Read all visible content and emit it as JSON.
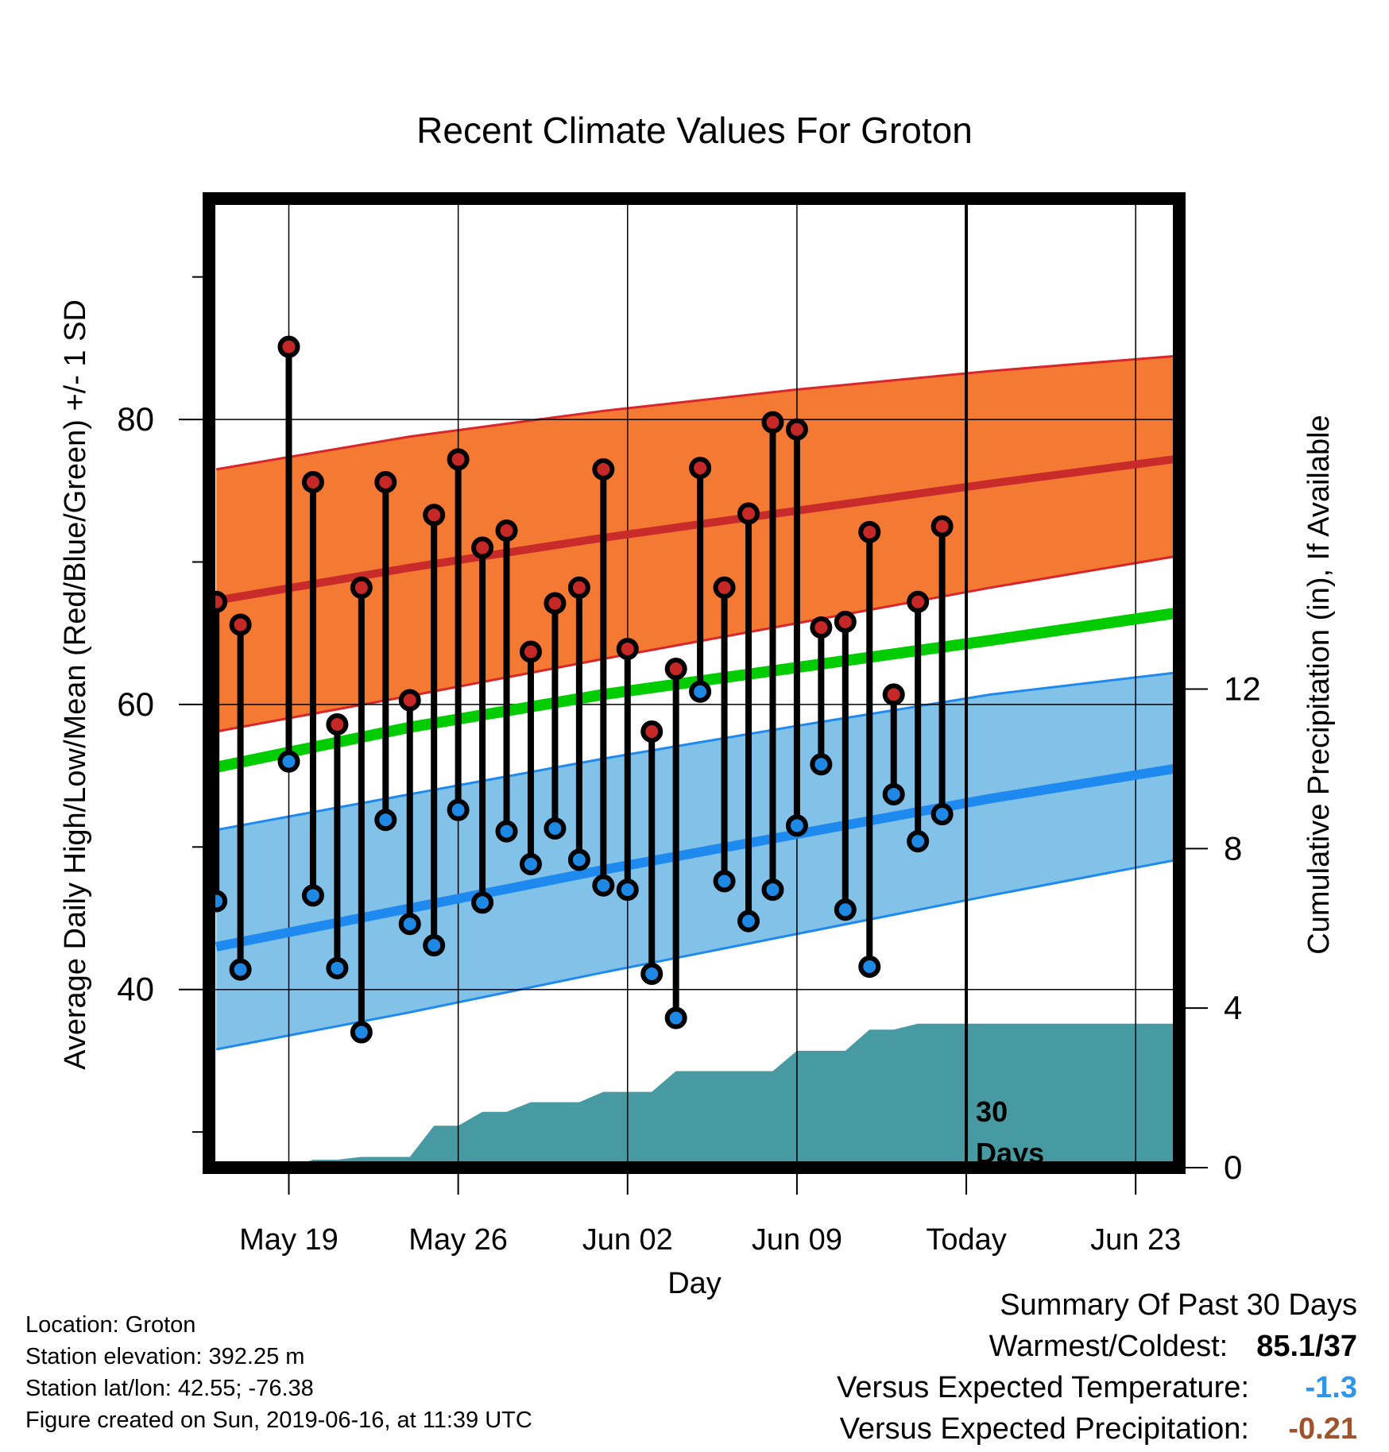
{
  "chart_data": {
    "type": "line",
    "title": "Recent Climate Values For Groton",
    "xlabel": "Day",
    "ylabel": "Average Daily High/Low/Mean (Red/Blue/Green) +/- 1 SD",
    "y2label": "Cumulative Precipitation (in), If Available",
    "x_tick_labels": [
      "May 19",
      "May 26",
      "Jun 02",
      "Jun 09",
      "Today",
      "Jun 23"
    ],
    "x_tick_days": [
      19,
      26,
      33,
      40,
      47,
      54
    ],
    "xlim_days": [
      15.7,
      55.8
    ],
    "ylim": [
      27.5,
      95.5
    ],
    "y_ticks": [
      40,
      60,
      80
    ],
    "y2_ticks": [
      0,
      4,
      8,
      12
    ],
    "y2lim": [
      0,
      24.3
    ],
    "today_day": 47,
    "today_marker_label": [
      "30",
      "Days"
    ],
    "grid": true,
    "daily_obs": {
      "days": [
        16,
        17,
        19,
        20,
        21,
        22,
        23,
        24,
        25,
        26,
        27,
        28,
        29,
        30,
        31,
        32,
        33,
        34,
        35,
        36,
        37,
        38,
        39,
        40,
        41,
        42,
        43,
        44,
        45,
        46
      ],
      "high": [
        67.2,
        65.6,
        85.1,
        75.6,
        58.6,
        68.2,
        75.6,
        60.3,
        73.3,
        77.2,
        71.0,
        72.2,
        63.7,
        67.1,
        68.2,
        76.5,
        63.9,
        58.1,
        62.5,
        76.6,
        68.2,
        73.4,
        79.8,
        79.3,
        65.4,
        65.8,
        72.1,
        60.7,
        67.2,
        72.5
      ],
      "low": [
        46.2,
        41.4,
        56.0,
        46.6,
        41.5,
        37.0,
        51.9,
        44.6,
        43.1,
        52.6,
        46.1,
        51.1,
        48.8,
        51.3,
        49.1,
        47.3,
        47.0,
        41.1,
        38.0,
        60.9,
        47.6,
        44.8,
        47.0,
        51.5,
        55.8,
        45.6,
        41.6,
        53.7,
        50.4,
        52.3
      ]
    },
    "normals": {
      "days": [
        16,
        24,
        32,
        40,
        48,
        56
      ],
      "high_mean": [
        67.3,
        69.6,
        71.7,
        73.6,
        75.5,
        77.3
      ],
      "high_upper": [
        76.5,
        78.8,
        80.6,
        82.1,
        83.4,
        84.5
      ],
      "high_lower": [
        58.1,
        60.6,
        63.2,
        65.7,
        68.2,
        70.5
      ],
      "low_mean": [
        43.0,
        45.7,
        48.4,
        50.9,
        53.4,
        55.6
      ],
      "low_upper": [
        51.2,
        53.7,
        56.2,
        58.5,
        60.7,
        62.3
      ],
      "low_lower": [
        35.8,
        38.4,
        41.2,
        43.9,
        46.6,
        49.2
      ],
      "mean": [
        55.6,
        58.4,
        60.7,
        62.6,
        64.5,
        66.5
      ]
    },
    "precip_cumulative": {
      "days": [
        16,
        19,
        20,
        21,
        22,
        23,
        24,
        25,
        26,
        27,
        28,
        29,
        30,
        31,
        32,
        33,
        34,
        35,
        36,
        37,
        38,
        39,
        40,
        41,
        42,
        43,
        44,
        45,
        46,
        47,
        56
      ],
      "values": [
        0,
        0,
        0.2,
        0.2,
        0.27,
        0.27,
        0.27,
        1.05,
        1.05,
        1.4,
        1.4,
        1.64,
        1.64,
        1.64,
        1.9,
        1.9,
        1.9,
        2.42,
        2.42,
        2.42,
        2.42,
        2.42,
        2.93,
        2.93,
        2.93,
        3.46,
        3.46,
        3.61,
        3.61,
        3.61,
        3.61
      ]
    },
    "colors": {
      "high_band": "#F47A33",
      "high_band_edge": "#D8262A",
      "high_line": "#C92A2A",
      "low_band": "#82C1E8",
      "low_band_edge": "#1E8AF0",
      "low_line": "#1E8AF0",
      "mean_line": "#00CC00",
      "precip": "#479AA1",
      "high_marker": "#C62828",
      "low_marker": "#1E88E5"
    }
  },
  "info": {
    "location": "Location: Groton",
    "elevation": "Station elevation: 392.25 m",
    "latlon": "Station lat/lon: 42.55; -76.38",
    "created": "Figure created on Sun, 2019-06-16, at 11:39 UTC"
  },
  "summary": {
    "heading": "Summary Of Past 30 Days",
    "warmest_coldest_label": "Warmest/Coldest:",
    "warmest_coldest_value": "85.1/37",
    "temp_label": "Versus Expected Temperature:",
    "temp_value": "-1.3",
    "temp_color": "#2E95E8",
    "precip_label": "Versus Expected Precipitation:",
    "precip_value": "-0.21",
    "precip_color": "#A0522D"
  }
}
